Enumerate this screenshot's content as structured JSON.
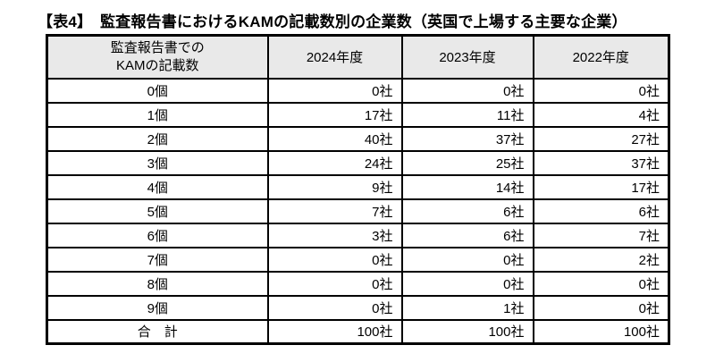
{
  "title": "【表4】　監査報告書におけるKAMの記載数別の企業数（英国で上場する主要な企業）",
  "table": {
    "header": {
      "col1_line1": "監査報告書での",
      "col1_line2": "KAMの記載数",
      "years": [
        "2024年度",
        "2023年度",
        "2022年度"
      ]
    },
    "rows": [
      {
        "label": "0個",
        "values": [
          "0社",
          "0社",
          "0社"
        ]
      },
      {
        "label": "1個",
        "values": [
          "17社",
          "11社",
          "4社"
        ]
      },
      {
        "label": "2個",
        "values": [
          "40社",
          "37社",
          "27社"
        ]
      },
      {
        "label": "3個",
        "values": [
          "24社",
          "25社",
          "37社"
        ]
      },
      {
        "label": "4個",
        "values": [
          "9社",
          "14社",
          "17社"
        ]
      },
      {
        "label": "5個",
        "values": [
          "7社",
          "6社",
          "6社"
        ]
      },
      {
        "label": "6個",
        "values": [
          "3社",
          "6社",
          "7社"
        ]
      },
      {
        "label": "7個",
        "values": [
          "0社",
          "0社",
          "2社"
        ]
      },
      {
        "label": "8個",
        "values": [
          "0社",
          "0社",
          "0社"
        ]
      },
      {
        "label": "9個",
        "values": [
          "0社",
          "1社",
          "0社"
        ]
      },
      {
        "label": "合　計",
        "values": [
          "100社",
          "100社",
          "100社"
        ]
      }
    ]
  },
  "colors": {
    "header_bg": "#e9e9e9",
    "border": "#000000",
    "background": "#ffffff",
    "text": "#000000"
  }
}
